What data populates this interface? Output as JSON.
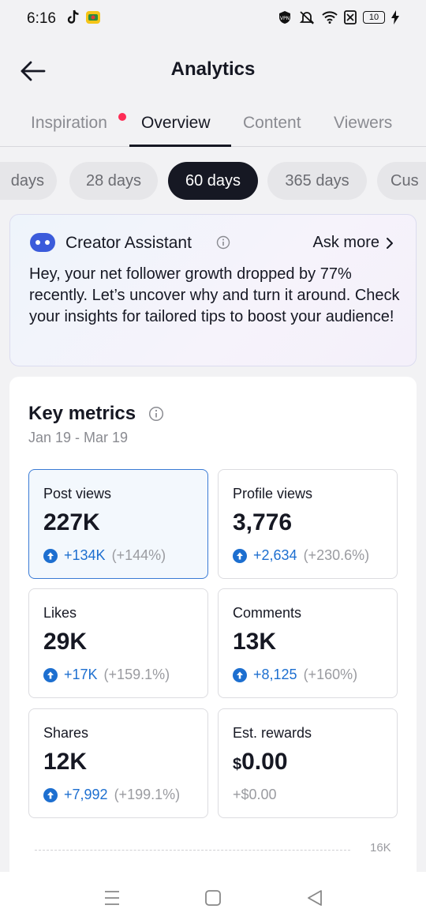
{
  "status": {
    "time": "6:16",
    "battery": "10"
  },
  "header": {
    "title": "Analytics"
  },
  "tabs": [
    {
      "label": "Inspiration"
    },
    {
      "label": "Overview"
    },
    {
      "label": "Content"
    },
    {
      "label": "Viewers"
    }
  ],
  "ranges": [
    {
      "label": "days"
    },
    {
      "label": "28 days"
    },
    {
      "label": "60 days"
    },
    {
      "label": "365 days"
    },
    {
      "label": "Cus"
    }
  ],
  "assistant": {
    "title": "Creator Assistant",
    "ask_more": "Ask more",
    "text": "Hey, your net follower growth dropped by 77% recently. Let’s uncover why and turn it around. Check your insights for tailored tips to boost your audience!"
  },
  "metrics": {
    "title": "Key metrics",
    "range": "Jan 19 - Mar 19",
    "items": [
      {
        "label": "Post views",
        "value": "227K",
        "change": "+134K",
        "pct": "(+144%)"
      },
      {
        "label": "Profile views",
        "value": "3,776",
        "change": "+2,634",
        "pct": "(+230.6%)"
      },
      {
        "label": "Likes",
        "value": "29K",
        "change": "+17K",
        "pct": "(+159.1%)"
      },
      {
        "label": "Comments",
        "value": "13K",
        "change": "+8,125",
        "pct": "(+160%)"
      },
      {
        "label": "Shares",
        "value": "12K",
        "change": "+7,992",
        "pct": "(+199.1%)"
      },
      {
        "label": "Est. rewards",
        "currency": "$",
        "value": "0.00",
        "change": "+$0.00"
      }
    ],
    "chart_tick": "16K"
  },
  "colors": {
    "accent": "#1d6fd0",
    "selected_border": "#3a7bd5",
    "notification_dot": "#fe2c55",
    "active_chip": "#161823"
  }
}
